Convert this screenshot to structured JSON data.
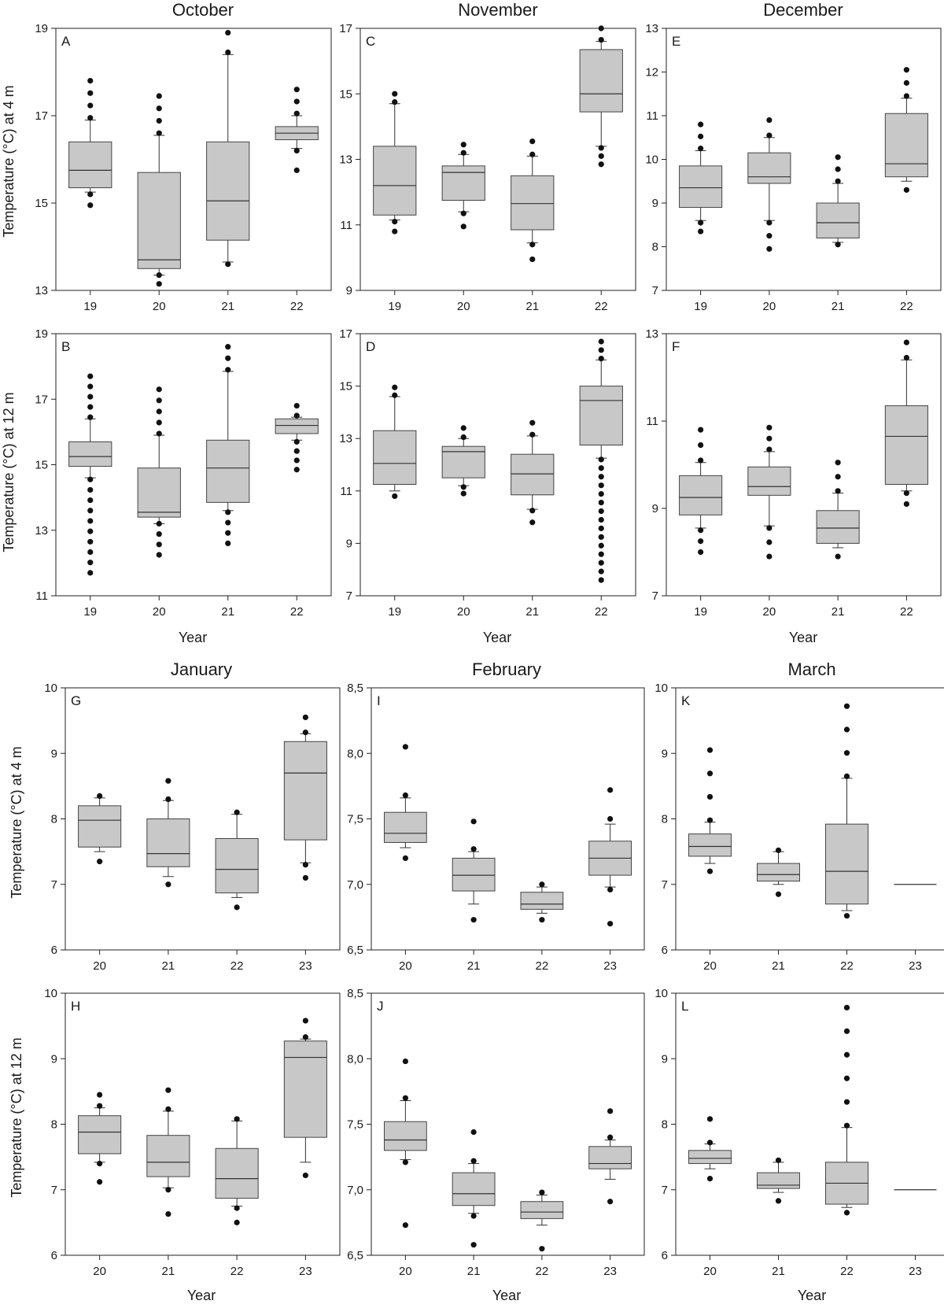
{
  "months": [
    "October",
    "November",
    "December",
    "January",
    "February",
    "March"
  ],
  "labels": {
    "xlabel": "Year",
    "ylabel_4m": "Temperature (°C) at 4 m",
    "ylabel_12m": "Temperature (°C) at 12 m"
  },
  "chart_data": [
    {
      "type": "box",
      "letter": "A",
      "title": "October",
      "depth": "4 m",
      "ylim": [
        13,
        19
      ],
      "yticks": [
        "13",
        "15",
        "17",
        "19"
      ],
      "categories": [
        "19",
        "20",
        "21",
        "22"
      ],
      "boxes": [
        {
          "whisker_low": 15.25,
          "q1": 15.35,
          "median": 15.75,
          "q3": 16.4,
          "whisker_high": 16.9,
          "outliers_low": [
            14.95,
            15.2
          ],
          "outliers_high": [
            16.95,
            17.8
          ]
        },
        {
          "whisker_low": 13.35,
          "q1": 13.5,
          "median": 13.7,
          "q3": 15.7,
          "whisker_high": 16.55,
          "outliers_low": [
            13.15,
            13.35
          ],
          "outliers_high": [
            16.6,
            17.45
          ]
        },
        {
          "whisker_low": 13.65,
          "q1": 14.15,
          "median": 15.05,
          "q3": 16.4,
          "whisker_high": 18.4,
          "outliers_low": [
            13.6,
            13.65
          ],
          "outliers_high": [
            18.45,
            18.9
          ]
        },
        {
          "whisker_low": 16.25,
          "q1": 16.45,
          "median": 16.6,
          "q3": 16.75,
          "whisker_high": 17.0,
          "outliers_low": [
            15.75,
            16.2
          ],
          "outliers_high": [
            17.05,
            17.6
          ]
        }
      ]
    },
    {
      "type": "box",
      "letter": "B",
      "title": "October",
      "depth": "12 m",
      "ylim": [
        11,
        19
      ],
      "yticks": [
        "11",
        "13",
        "15",
        "17",
        "19"
      ],
      "categories": [
        "19",
        "20",
        "21",
        "22"
      ],
      "boxes": [
        {
          "whisker_low": 14.6,
          "q1": 14.95,
          "median": 15.25,
          "q3": 15.7,
          "whisker_high": 16.4,
          "outliers_low": [
            11.7,
            14.55
          ],
          "outliers_high": [
            16.45,
            17.7
          ]
        },
        {
          "whisker_low": 13.2,
          "q1": 13.4,
          "median": 13.55,
          "q3": 14.9,
          "whisker_high": 15.9,
          "outliers_low": [
            12.25,
            13.2
          ],
          "outliers_high": [
            15.95,
            17.3
          ]
        },
        {
          "whisker_low": 13.6,
          "q1": 13.85,
          "median": 14.9,
          "q3": 15.75,
          "whisker_high": 17.85,
          "outliers_low": [
            12.6,
            13.55
          ],
          "outliers_high": [
            17.9,
            18.6
          ]
        },
        {
          "whisker_low": 15.75,
          "q1": 15.95,
          "median": 16.2,
          "q3": 16.4,
          "whisker_high": 16.45,
          "outliers_low": [
            14.85,
            15.7
          ],
          "outliers_high": [
            16.5,
            16.8
          ]
        }
      ]
    },
    {
      "type": "box",
      "letter": "C",
      "title": "November",
      "depth": "4 m",
      "ylim": [
        9,
        17
      ],
      "yticks": [
        "9",
        "11",
        "13",
        "15",
        "17"
      ],
      "categories": [
        "19",
        "20",
        "21",
        "22"
      ],
      "boxes": [
        {
          "whisker_low": 11.15,
          "q1": 11.3,
          "median": 12.2,
          "q3": 13.4,
          "whisker_high": 14.7,
          "outliers_low": [
            10.8,
            11.1
          ],
          "outliers_high": [
            14.75,
            15.0
          ]
        },
        {
          "whisker_low": 11.4,
          "q1": 11.75,
          "median": 12.6,
          "q3": 12.8,
          "whisker_high": 13.15,
          "outliers_low": [
            10.95,
            11.35
          ],
          "outliers_high": [
            13.2,
            13.45
          ]
        },
        {
          "whisker_low": 10.45,
          "q1": 10.85,
          "median": 11.65,
          "q3": 12.5,
          "whisker_high": 13.1,
          "outliers_low": [
            9.95,
            10.4
          ],
          "outliers_high": [
            13.15,
            13.55
          ]
        },
        {
          "whisker_low": 13.4,
          "q1": 14.45,
          "median": 15.0,
          "q3": 16.35,
          "whisker_high": 16.6,
          "outliers_low": [
            12.85,
            13.35
          ],
          "outliers_high": [
            16.65,
            17.0
          ]
        }
      ]
    },
    {
      "type": "box",
      "letter": "D",
      "title": "November",
      "depth": "12 m",
      "ylim": [
        7,
        17
      ],
      "yticks": [
        "7",
        "9",
        "11",
        "13",
        "15",
        "17"
      ],
      "categories": [
        "19",
        "20",
        "21",
        "22"
      ],
      "boxes": [
        {
          "whisker_low": 11.0,
          "q1": 11.25,
          "median": 12.05,
          "q3": 13.3,
          "whisker_high": 14.6,
          "outliers_low": [
            10.8,
            10.95
          ],
          "outliers_high": [
            14.65,
            14.95
          ]
        },
        {
          "whisker_low": 11.2,
          "q1": 11.5,
          "median": 12.5,
          "q3": 12.7,
          "whisker_high": 13.0,
          "outliers_low": [
            10.9,
            11.15
          ],
          "outliers_high": [
            13.05,
            13.4
          ]
        },
        {
          "whisker_low": 10.3,
          "q1": 10.85,
          "median": 11.65,
          "q3": 12.4,
          "whisker_high": 13.1,
          "outliers_low": [
            9.8,
            10.25
          ],
          "outliers_high": [
            13.15,
            13.6
          ]
        },
        {
          "whisker_low": 12.25,
          "q1": 12.75,
          "median": 14.45,
          "q3": 15.0,
          "whisker_high": 16.0,
          "outliers_low": [
            7.6,
            12.2
          ],
          "outliers_high": [
            16.05,
            16.7
          ]
        }
      ]
    },
    {
      "type": "box",
      "letter": "E",
      "title": "December",
      "depth": "4 m",
      "ylim": [
        7,
        13
      ],
      "yticks": [
        "7",
        "8",
        "9",
        "10",
        "11",
        "12",
        "13"
      ],
      "categories": [
        "19",
        "20",
        "21",
        "22"
      ],
      "boxes": [
        {
          "whisker_low": 8.6,
          "q1": 8.9,
          "median": 9.35,
          "q3": 9.85,
          "whisker_high": 10.2,
          "outliers_low": [
            8.35,
            8.55
          ],
          "outliers_high": [
            10.25,
            10.8
          ]
        },
        {
          "whisker_low": 8.6,
          "q1": 9.45,
          "median": 9.6,
          "q3": 10.15,
          "whisker_high": 10.5,
          "outliers_low": [
            7.95,
            8.55
          ],
          "outliers_high": [
            10.55,
            10.9
          ]
        },
        {
          "whisker_low": 8.1,
          "q1": 8.2,
          "median": 8.55,
          "q3": 9.0,
          "whisker_high": 9.45,
          "outliers_low": [
            8.05,
            8.1
          ],
          "outliers_high": [
            9.5,
            10.05
          ]
        },
        {
          "whisker_low": 9.5,
          "q1": 9.6,
          "median": 9.9,
          "q3": 11.05,
          "whisker_high": 11.4,
          "outliers_low": [
            9.3,
            9.45
          ],
          "outliers_high": [
            11.45,
            12.05
          ]
        }
      ]
    },
    {
      "type": "box",
      "letter": "F",
      "title": "December",
      "depth": "12 m",
      "ylim": [
        7,
        13
      ],
      "yticks": [
        "7",
        "9",
        "11",
        "13"
      ],
      "categories": [
        "19",
        "20",
        "21",
        "22"
      ],
      "boxes": [
        {
          "whisker_low": 8.55,
          "q1": 8.85,
          "median": 9.25,
          "q3": 9.75,
          "whisker_high": 10.05,
          "outliers_low": [
            8.0,
            8.5
          ],
          "outliers_high": [
            10.1,
            10.8
          ]
        },
        {
          "whisker_low": 8.6,
          "q1": 9.3,
          "median": 9.5,
          "q3": 9.95,
          "whisker_high": 10.3,
          "outliers_low": [
            7.9,
            8.55
          ],
          "outliers_high": [
            10.35,
            10.85
          ]
        },
        {
          "whisker_low": 8.1,
          "q1": 8.2,
          "median": 8.55,
          "q3": 8.95,
          "whisker_high": 9.35,
          "outliers_low": [
            7.9,
            8.05
          ],
          "outliers_high": [
            9.4,
            10.05
          ]
        },
        {
          "whisker_low": 9.4,
          "q1": 9.55,
          "median": 10.65,
          "q3": 11.35,
          "whisker_high": 12.4,
          "outliers_low": [
            9.1,
            9.35
          ],
          "outliers_high": [
            12.45,
            12.8
          ]
        }
      ]
    },
    {
      "type": "box",
      "letter": "G",
      "title": "January",
      "depth": "4 m",
      "ylim": [
        6,
        10
      ],
      "yticks": [
        "6",
        "7",
        "8",
        "9",
        "10"
      ],
      "categories": [
        "20",
        "21",
        "22",
        "23"
      ],
      "boxes": [
        {
          "whisker_low": 7.5,
          "q1": 7.57,
          "median": 7.98,
          "q3": 8.2,
          "whisker_high": 8.32,
          "outliers_low": [
            7.35,
            7.45
          ],
          "outliers_high": [
            8.35,
            8.5
          ]
        },
        {
          "whisker_low": 7.12,
          "q1": 7.27,
          "median": 7.47,
          "q3": 8.0,
          "whisker_high": 8.28,
          "outliers_low": [
            7.0,
            7.1
          ],
          "outliers_high": [
            8.3,
            8.58
          ]
        },
        {
          "whisker_low": 6.8,
          "q1": 6.87,
          "median": 7.23,
          "q3": 7.7,
          "whisker_high": 8.07,
          "outliers_low": [
            6.65,
            6.75
          ],
          "outliers_high": [
            8.1,
            8.2
          ]
        },
        {
          "whisker_low": 7.33,
          "q1": 7.68,
          "median": 8.7,
          "q3": 9.18,
          "whisker_high": 9.3,
          "outliers_low": [
            7.1,
            7.3
          ],
          "outliers_high": [
            9.32,
            9.55
          ]
        }
      ]
    },
    {
      "type": "box",
      "letter": "H",
      "title": "January",
      "depth": "12 m",
      "ylim": [
        6,
        10
      ],
      "yticks": [
        "6",
        "7",
        "8",
        "9",
        "10"
      ],
      "categories": [
        "20",
        "21",
        "22",
        "23"
      ],
      "boxes": [
        {
          "whisker_low": 7.42,
          "q1": 7.55,
          "median": 7.88,
          "q3": 8.13,
          "whisker_high": 8.25,
          "outliers_low": [
            7.12,
            7.4
          ],
          "outliers_high": [
            8.28,
            8.45
          ]
        },
        {
          "whisker_low": 7.03,
          "q1": 7.2,
          "median": 7.42,
          "q3": 7.83,
          "whisker_high": 8.2,
          "outliers_low": [
            6.63,
            7.0
          ],
          "outliers_high": [
            8.23,
            8.52
          ]
        },
        {
          "whisker_low": 6.75,
          "q1": 6.87,
          "median": 7.17,
          "q3": 7.63,
          "whisker_high": 8.05,
          "outliers_low": [
            6.5,
            6.72
          ],
          "outliers_high": [
            8.08,
            8.2
          ]
        },
        {
          "whisker_low": 7.42,
          "q1": 7.8,
          "median": 9.02,
          "q3": 9.27,
          "whisker_high": 9.3,
          "outliers_low": [
            7.22,
            7.38
          ],
          "outliers_high": [
            9.33,
            9.58
          ]
        }
      ]
    },
    {
      "type": "box",
      "letter": "I",
      "title": "February",
      "depth": "4 m",
      "ylim": [
        6.5,
        8.5
      ],
      "yticks": [
        "6,5",
        "7,0",
        "7,5",
        "8,0",
        "8,5"
      ],
      "categories": [
        "20",
        "21",
        "22",
        "23"
      ],
      "boxes": [
        {
          "whisker_low": 7.28,
          "q1": 7.32,
          "median": 7.39,
          "q3": 7.55,
          "whisker_high": 7.66,
          "outliers_low": [
            7.2,
            7.26
          ],
          "outliers_high": [
            7.68,
            8.05
          ]
        },
        {
          "whisker_low": 6.85,
          "q1": 6.95,
          "median": 7.07,
          "q3": 7.2,
          "whisker_high": 7.25,
          "outliers_low": [
            6.73,
            6.83
          ],
          "outliers_high": [
            7.27,
            7.48
          ]
        },
        {
          "whisker_low": 6.78,
          "q1": 6.81,
          "median": 6.85,
          "q3": 6.94,
          "whisker_high": 6.98,
          "outliers_low": [
            6.73,
            6.77
          ],
          "outliers_high": [
            7.0,
            7.12
          ]
        },
        {
          "whisker_low": 6.98,
          "q1": 7.07,
          "median": 7.2,
          "q3": 7.33,
          "whisker_high": 7.46,
          "outliers_low": [
            6.7,
            6.96
          ],
          "outliers_high": [
            7.5,
            7.72
          ]
        }
      ]
    },
    {
      "type": "box",
      "letter": "J",
      "title": "February",
      "depth": "12 m",
      "ylim": [
        6.5,
        8.5
      ],
      "yticks": [
        "6,5",
        "7,0",
        "7,5",
        "8,0",
        "8,5"
      ],
      "categories": [
        "20",
        "21",
        "22",
        "23"
      ],
      "boxes": [
        {
          "whisker_low": 7.23,
          "q1": 7.3,
          "median": 7.38,
          "q3": 7.52,
          "whisker_high": 7.68,
          "outliers_low": [
            6.73,
            7.21
          ],
          "outliers_high": [
            7.7,
            7.98
          ]
        },
        {
          "whisker_low": 6.82,
          "q1": 6.88,
          "median": 6.97,
          "q3": 7.13,
          "whisker_high": 7.2,
          "outliers_low": [
            6.58,
            6.8
          ],
          "outliers_high": [
            7.22,
            7.44
          ]
        },
        {
          "whisker_low": 6.73,
          "q1": 6.78,
          "median": 6.83,
          "q3": 6.91,
          "whisker_high": 6.96,
          "outliers_low": [
            6.55,
            6.71
          ],
          "outliers_high": [
            6.98,
            7.1
          ]
        },
        {
          "whisker_low": 7.08,
          "q1": 7.16,
          "median": 7.2,
          "q3": 7.33,
          "whisker_high": 7.38,
          "outliers_low": [
            6.91,
            7.06
          ],
          "outliers_high": [
            7.4,
            7.6
          ]
        }
      ]
    },
    {
      "type": "box",
      "letter": "K",
      "title": "March",
      "depth": "4 m",
      "ylim": [
        6,
        10
      ],
      "yticks": [
        "6",
        "7",
        "8",
        "9",
        "10"
      ],
      "categories": [
        "20",
        "21",
        "22",
        "23"
      ],
      "boxes": [
        {
          "whisker_low": 7.32,
          "q1": 7.43,
          "median": 7.58,
          "q3": 7.77,
          "whisker_high": 7.95,
          "outliers_low": [
            7.2,
            7.3
          ],
          "outliers_high": [
            7.98,
            9.05
          ]
        },
        {
          "whisker_low": 7.0,
          "q1": 7.05,
          "median": 7.15,
          "q3": 7.32,
          "whisker_high": 7.5,
          "outliers_low": [
            6.85,
            6.98
          ],
          "outliers_high": [
            7.52,
            7.68
          ]
        },
        {
          "whisker_low": 6.6,
          "q1": 6.7,
          "median": 7.2,
          "q3": 7.92,
          "whisker_high": 8.62,
          "outliers_low": [
            6.52,
            6.58
          ],
          "outliers_high": [
            8.65,
            9.72
          ]
        },
        {
          "whisker_low": 7.0,
          "q1": 7.0,
          "median": 7.0,
          "q3": 7.0,
          "whisker_high": 7.0,
          "outliers_low": [],
          "outliers_high": []
        }
      ]
    },
    {
      "type": "box",
      "letter": "L",
      "title": "March",
      "depth": "12 m",
      "ylim": [
        6,
        10
      ],
      "yticks": [
        "6",
        "7",
        "8",
        "9",
        "10"
      ],
      "categories": [
        "20",
        "21",
        "22",
        "23"
      ],
      "boxes": [
        {
          "whisker_low": 7.32,
          "q1": 7.4,
          "median": 7.48,
          "q3": 7.6,
          "whisker_high": 7.7,
          "outliers_low": [
            7.17,
            7.3
          ],
          "outliers_high": [
            7.72,
            8.08
          ]
        },
        {
          "whisker_low": 6.96,
          "q1": 7.02,
          "median": 7.07,
          "q3": 7.26,
          "whisker_high": 7.42,
          "outliers_low": [
            6.83,
            6.94
          ],
          "outliers_high": [
            7.45,
            7.6
          ]
        },
        {
          "whisker_low": 6.73,
          "q1": 6.78,
          "median": 7.1,
          "q3": 7.42,
          "whisker_high": 7.95,
          "outliers_low": [
            6.65,
            6.71
          ],
          "outliers_high": [
            7.98,
            9.78
          ]
        },
        {
          "whisker_low": 7.0,
          "q1": 7.0,
          "median": 7.0,
          "q3": 7.0,
          "whisker_high": 7.0,
          "outliers_low": [],
          "outliers_high": []
        }
      ]
    }
  ]
}
